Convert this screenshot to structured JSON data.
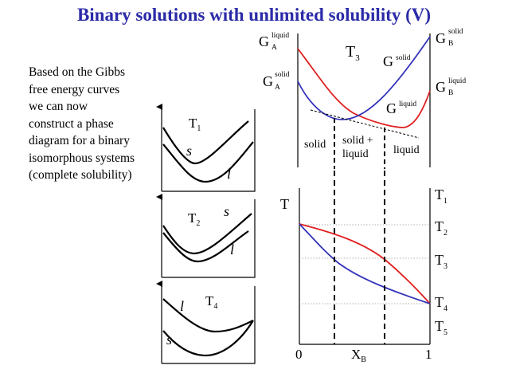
{
  "title": "Binary solutions with unlimited solubility (V)",
  "intro_lines": [
    "Based on the Gibbs",
    "free energy curves",
    "we can now",
    "construct a phase",
    "diagram for a binary",
    "isomorphous systems",
    "(complete solubility)"
  ],
  "symbols": {
    "G": "G",
    "T": "T",
    "s": "s",
    "l": "l",
    "X": "X"
  },
  "small_panels": [
    {
      "temp_base": "T",
      "temp_sub": "1"
    },
    {
      "temp_base": "T",
      "temp_sub": "2"
    },
    {
      "temp_base": "T",
      "temp_sub": "4"
    }
  ],
  "free_energy_plot": {
    "temperature_base": "T",
    "temperature_sub": "3",
    "labels": {
      "GA_liquid_sup": "liquid",
      "GA_liquid_sub": "A",
      "GA_solid_sup": "solid",
      "GA_solid_sub": "A",
      "GB_solid_sup": "solid",
      "GB_solid_sub": "B",
      "GB_liquid_sup": "liquid",
      "GB_liquid_sub": "B",
      "G_solid_sup": "solid",
      "G_liquid_sup": "liquid"
    },
    "regions": {
      "solid": "solid",
      "two_phase_line1": "solid +",
      "two_phase_line2": "liquid",
      "liquid": "liquid"
    },
    "colors": {
      "solid_curve": "#3333bb",
      "liquid_curve": "#e02020"
    }
  },
  "phase_diagram": {
    "y_axis_label": "T",
    "x_axis_label_base": "X",
    "x_axis_label_sub": "B",
    "x_min_label": "0",
    "x_max_label": "1",
    "temperatures": [
      {
        "base": "T",
        "sub": "1"
      },
      {
        "base": "T",
        "sub": "2"
      },
      {
        "base": "T",
        "sub": "3"
      },
      {
        "base": "T",
        "sub": "4"
      },
      {
        "base": "T",
        "sub": "5"
      }
    ],
    "colors": {
      "solidus": "#3333bb",
      "liquidus": "#e02020"
    }
  }
}
